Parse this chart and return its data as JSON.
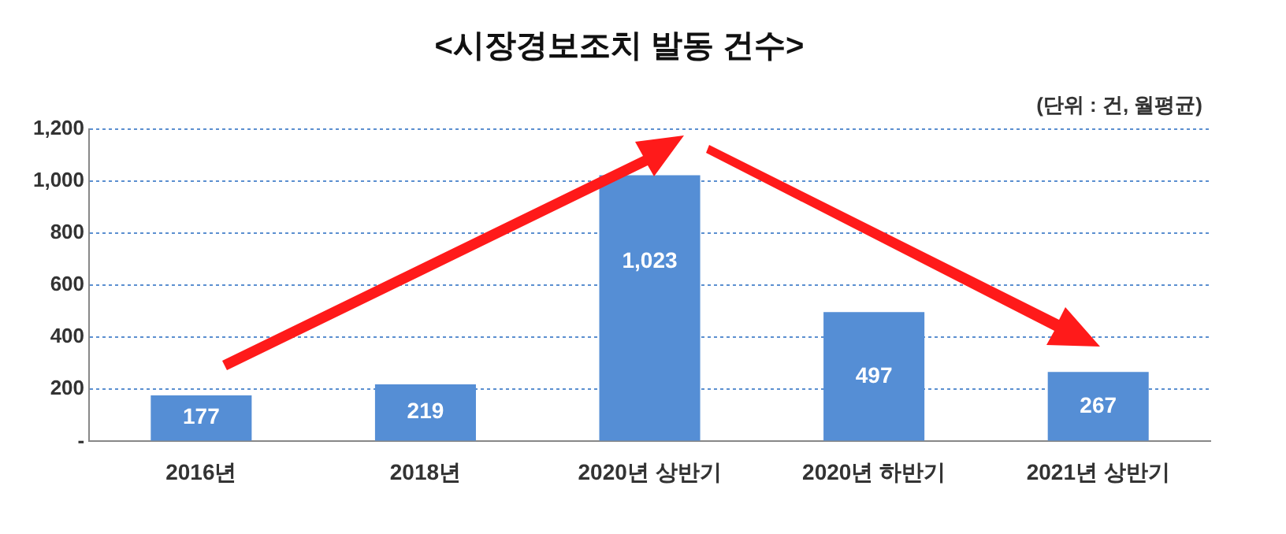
{
  "chart_data": {
    "type": "bar",
    "title": "<시장경보조치 발동 건수>",
    "annotations": [
      "(단위 : 건, 월평균)"
    ],
    "categories": [
      "2016년",
      "2018년",
      "2020년 상반기",
      "2020년 하반기",
      "2021년 상반기"
    ],
    "values": [
      177,
      219,
      1023,
      497,
      267
    ],
    "color": "#558ed5",
    "ylim": [
      0,
      1200
    ],
    "yticks": [
      {
        "value": 0,
        "label": "-"
      },
      200,
      400,
      600,
      800,
      {
        "value": 1000,
        "label": "1,000"
      },
      {
        "value": 1200,
        "label": "1,200"
      }
    ],
    "value_labels": [
      "177",
      "219",
      "1,023",
      "497",
      "267"
    ],
    "grid": "y",
    "legend": false
  }
}
